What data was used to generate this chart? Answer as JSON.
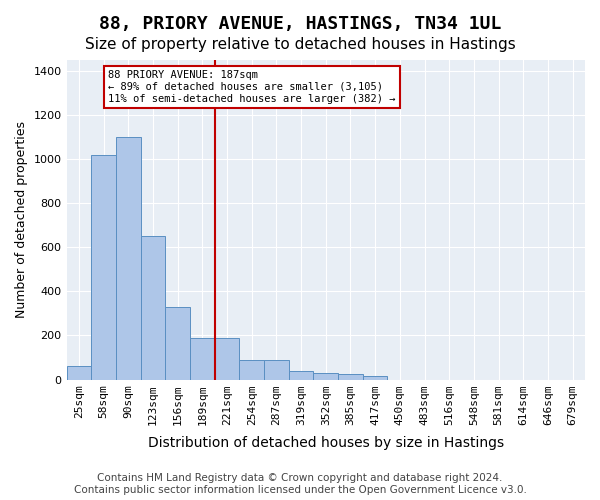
{
  "title": "88, PRIORY AVENUE, HASTINGS, TN34 1UL",
  "subtitle": "Size of property relative to detached houses in Hastings",
  "xlabel": "Distribution of detached houses by size in Hastings",
  "ylabel": "Number of detached properties",
  "categories": [
    "25sqm",
    "58sqm",
    "90sqm",
    "123sqm",
    "156sqm",
    "189sqm",
    "221sqm",
    "254sqm",
    "287sqm",
    "319sqm",
    "352sqm",
    "385sqm",
    "417sqm",
    "450sqm",
    "483sqm",
    "516sqm",
    "548sqm",
    "581sqm",
    "614sqm",
    "646sqm",
    "679sqm"
  ],
  "values": [
    62,
    1020,
    1100,
    650,
    330,
    190,
    190,
    90,
    90,
    40,
    28,
    25,
    15,
    0,
    0,
    0,
    0,
    0,
    0,
    0,
    0
  ],
  "bar_color": "#aec6e8",
  "bar_edge_color": "#5a8fc2",
  "highlight_index": 5,
  "highlight_color": "#c00000",
  "annotation_text": "88 PRIORY AVENUE: 187sqm\n← 89% of detached houses are smaller (3,105)\n11% of semi-detached houses are larger (382) →",
  "annotation_box_color": "white",
  "annotation_box_edge_color": "#c00000",
  "ylim": [
    0,
    1450
  ],
  "yticks": [
    0,
    200,
    400,
    600,
    800,
    1000,
    1200,
    1400
  ],
  "footer": "Contains HM Land Registry data © Crown copyright and database right 2024.\nContains public sector information licensed under the Open Government Licence v3.0.",
  "background_color": "#e8eef5",
  "grid_color": "white",
  "title_fontsize": 13,
  "subtitle_fontsize": 11,
  "xlabel_fontsize": 10,
  "ylabel_fontsize": 9,
  "tick_fontsize": 8,
  "footer_fontsize": 7.5
}
